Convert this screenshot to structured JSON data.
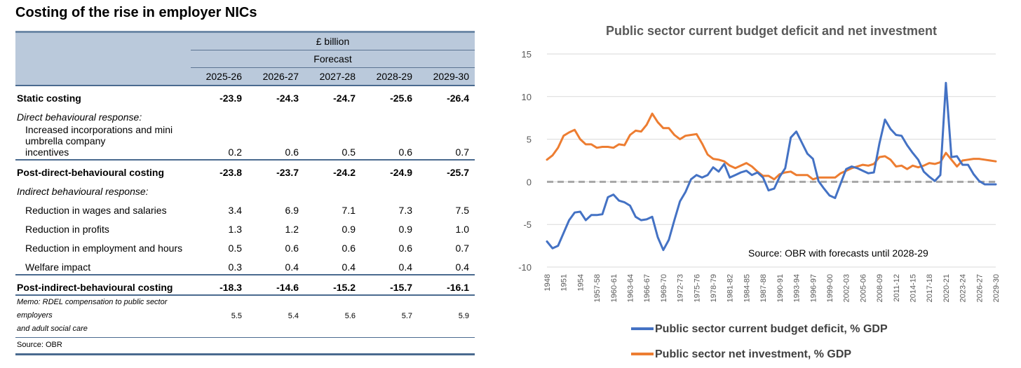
{
  "table": {
    "title": "Costing of the rise in employer NICs",
    "unit": "£ billion",
    "forecast_label": "Forecast",
    "years": [
      "2025-26",
      "2026-27",
      "2027-28",
      "2028-29",
      "2029-30"
    ],
    "rows": [
      {
        "label": "Static costing",
        "values": [
          "-23.9",
          "-24.3",
          "-24.7",
          "-25.6",
          "-26.4"
        ]
      },
      {
        "label": "Direct behavioural response:"
      },
      {
        "label": "Increased incorporations and mini umbrella company incentives",
        "values": [
          "0.2",
          "0.6",
          "0.5",
          "0.6",
          "0.7"
        ]
      },
      {
        "label": "Post-direct-behavioural costing",
        "values": [
          "-23.8",
          "-23.7",
          "-24.2",
          "-24.9",
          "-25.7"
        ]
      },
      {
        "label": "Indirect behavioural response:"
      },
      {
        "label": "Reduction in wages and salaries",
        "values": [
          "3.4",
          "6.9",
          "7.1",
          "7.3",
          "7.5"
        ]
      },
      {
        "label": "Reduction in profits",
        "values": [
          "1.3",
          "1.2",
          "0.9",
          "0.9",
          "1.0"
        ]
      },
      {
        "label": "Reduction in employment and hours",
        "values": [
          "0.5",
          "0.6",
          "0.6",
          "0.6",
          "0.7"
        ]
      },
      {
        "label": "Welfare impact",
        "values": [
          "0.3",
          "0.4",
          "0.4",
          "0.4",
          "0.4"
        ]
      },
      {
        "label": "Post-indirect-behavioural costing",
        "values": [
          "-18.3",
          "-14.6",
          "-15.2",
          "-15.7",
          "-16.1"
        ]
      },
      {
        "label": "Memo: RDEL compensation to public sector employers and adult social care",
        "values": [
          "5.5",
          "5.4",
          "5.6",
          "5.7",
          "5.9"
        ]
      }
    ],
    "source": "Source: OBR"
  },
  "chart_data": {
    "type": "line",
    "title": "Public sector current budget deficit and net investment",
    "annotation": "Source: OBR with forecasts until 2028-29",
    "ylim": [
      -10,
      15
    ],
    "yticks": [
      -10,
      -5,
      0,
      5,
      10,
      15
    ],
    "grid": true,
    "legend_position": "bottom",
    "x_tick_labels": [
      "1948",
      "1951",
      "1954",
      "1957-58",
      "1960-61",
      "1963-64",
      "1966-67",
      "1969-70",
      "1972-73",
      "1975-76",
      "1978-79",
      "1981-82",
      "1984-85",
      "1987-88",
      "1990-91",
      "1993-94",
      "1996-97",
      "1999-00",
      "2002-03",
      "2005-06",
      "2008-09",
      "2011-12",
      "2014-15",
      "2017-18",
      "2020-21",
      "2023-24",
      "2026-27",
      "2029-30"
    ],
    "x_start": 1948,
    "x_end": 2029,
    "reference_line": {
      "y": 0,
      "style": "dashed",
      "color": "#a6a6a6"
    },
    "series": [
      {
        "name": "Public sector current budget deficit, % GDP",
        "color": "#4472c4",
        "values": [
          -7.0,
          -7.8,
          -7.5,
          -6.0,
          -4.5,
          -3.6,
          -3.5,
          -4.5,
          -3.9,
          -3.9,
          -3.8,
          -1.8,
          -1.5,
          -2.2,
          -2.4,
          -2.8,
          -4.1,
          -4.5,
          -4.4,
          -4.1,
          -6.5,
          -8.0,
          -6.8,
          -4.5,
          -2.3,
          -1.2,
          0.3,
          0.8,
          0.5,
          0.8,
          1.7,
          1.2,
          2.1,
          0.5,
          0.8,
          1.1,
          1.3,
          0.8,
          1.1,
          0.5,
          -1.0,
          -0.8,
          0.6,
          1.6,
          5.2,
          5.9,
          4.6,
          3.3,
          2.7,
          0.1,
          -0.8,
          -1.6,
          -1.9,
          -0.2,
          1.5,
          1.8,
          1.6,
          1.3,
          1.0,
          1.1,
          4.5,
          7.3,
          6.2,
          5.5,
          5.4,
          4.3,
          3.4,
          2.6,
          1.2,
          0.6,
          0.1,
          0.8,
          11.6,
          2.9,
          3.0,
          2.0,
          2.0,
          0.9,
          0.1,
          -0.3,
          -0.3,
          -0.3
        ]
      },
      {
        "name": "Public sector net investment, % GDP",
        "color": "#ed7d31",
        "values": [
          2.6,
          3.1,
          4.0,
          5.4,
          5.8,
          6.1,
          5.0,
          4.4,
          4.4,
          4.0,
          4.1,
          4.1,
          4.0,
          4.4,
          4.3,
          5.5,
          6.0,
          5.9,
          6.7,
          8.0,
          7.0,
          6.3,
          6.3,
          5.5,
          5.0,
          5.4,
          5.5,
          5.6,
          4.5,
          3.2,
          2.7,
          2.6,
          2.4,
          1.9,
          1.6,
          1.9,
          2.2,
          1.8,
          1.2,
          0.7,
          0.7,
          0.3,
          0.9,
          1.1,
          1.2,
          0.8,
          0.8,
          0.8,
          0.3,
          0.5,
          0.5,
          0.5,
          0.5,
          1.0,
          1.3,
          1.6,
          1.8,
          2.0,
          1.9,
          2.1,
          2.9,
          3.0,
          2.6,
          1.8,
          1.9,
          1.5,
          1.9,
          1.7,
          1.9,
          2.2,
          2.1,
          2.3,
          3.4,
          2.6,
          1.8,
          2.5,
          2.6,
          2.7,
          2.7,
          2.6,
          2.5,
          2.4
        ]
      }
    ]
  }
}
